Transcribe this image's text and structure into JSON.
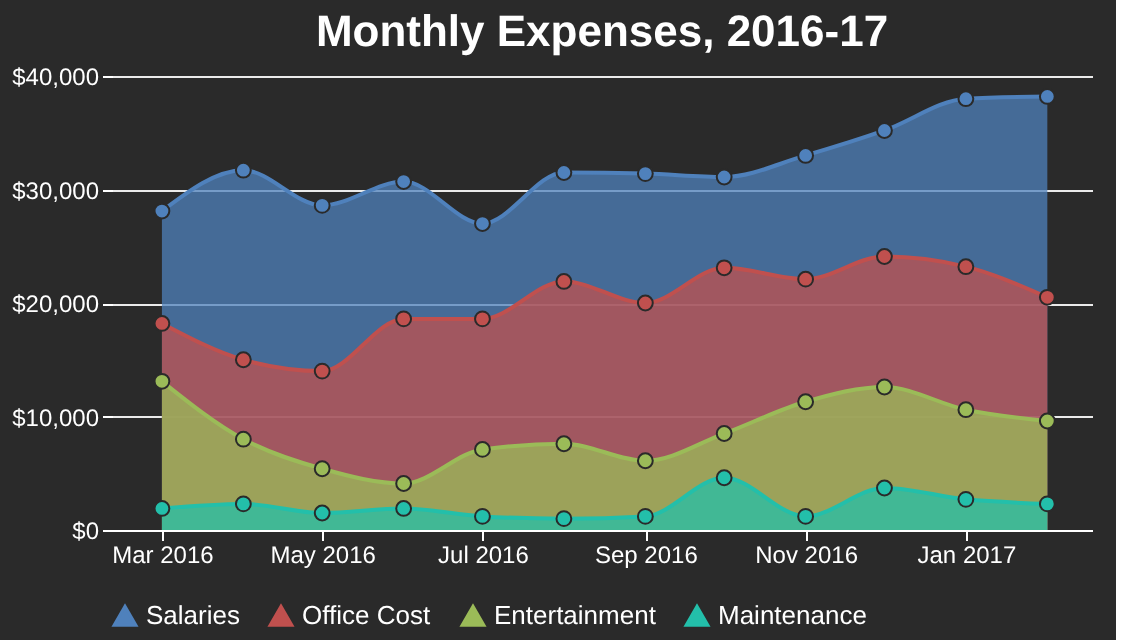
{
  "chart_data": {
    "type": "area",
    "title": "Monthly Expenses, 2016-17",
    "x": [
      "2016-03-01",
      "2016-04-01",
      "2016-05-01",
      "2016-06-01",
      "2016-07-01",
      "2016-08-01",
      "2016-09-01",
      "2016-10-01",
      "2016-11-01",
      "2016-12-01",
      "2017-01-01",
      "2017-02-01"
    ],
    "series": [
      {
        "name": "Salaries",
        "color": "#4f81bc",
        "values": [
          28100,
          31700,
          28600,
          30700,
          27000,
          31500,
          31400,
          31100,
          33000,
          35200,
          38000,
          38200
        ]
      },
      {
        "name": "Office Cost",
        "color": "#c0504e",
        "values": [
          18200,
          15000,
          14000,
          18600,
          18600,
          21900,
          20000,
          23100,
          22100,
          24100,
          23200,
          20500
        ]
      },
      {
        "name": "Entertainment",
        "color": "#9bbb58",
        "values": [
          13100,
          8000,
          5400,
          4100,
          7100,
          7600,
          6100,
          8500,
          11300,
          12600,
          10600,
          9600
        ]
      },
      {
        "name": "Maintenance",
        "color": "#23bfaa",
        "values": [
          1900,
          2300,
          1500,
          1900,
          1200,
          1000,
          1200,
          4600,
          1200,
          3700,
          2700,
          2300
        ]
      }
    ],
    "xlim": [
      "2016-02-11",
      "2017-02-18"
    ],
    "xticks": [
      {
        "value": "2016-03-01",
        "label": "Mar 2016"
      },
      {
        "value": "2016-05-01",
        "label": "May 2016"
      },
      {
        "value": "2016-07-01",
        "label": "Jul 2016"
      },
      {
        "value": "2016-09-01",
        "label": "Sep 2016"
      },
      {
        "value": "2016-11-01",
        "label": "Nov 2016"
      },
      {
        "value": "2017-01-01",
        "label": "Jan 2017"
      }
    ],
    "ylim": [
      0,
      40000
    ],
    "yticks": [
      {
        "value": 0,
        "label": "$0"
      },
      {
        "value": 10000,
        "label": "$10,000"
      },
      {
        "value": 20000,
        "label": "$20,000"
      },
      {
        "value": 30000,
        "label": "$30,000"
      },
      {
        "value": 40000,
        "label": "$40,000"
      }
    ],
    "grid": "y",
    "legend": "bottom",
    "marker": "circle",
    "line_style": "solid"
  }
}
